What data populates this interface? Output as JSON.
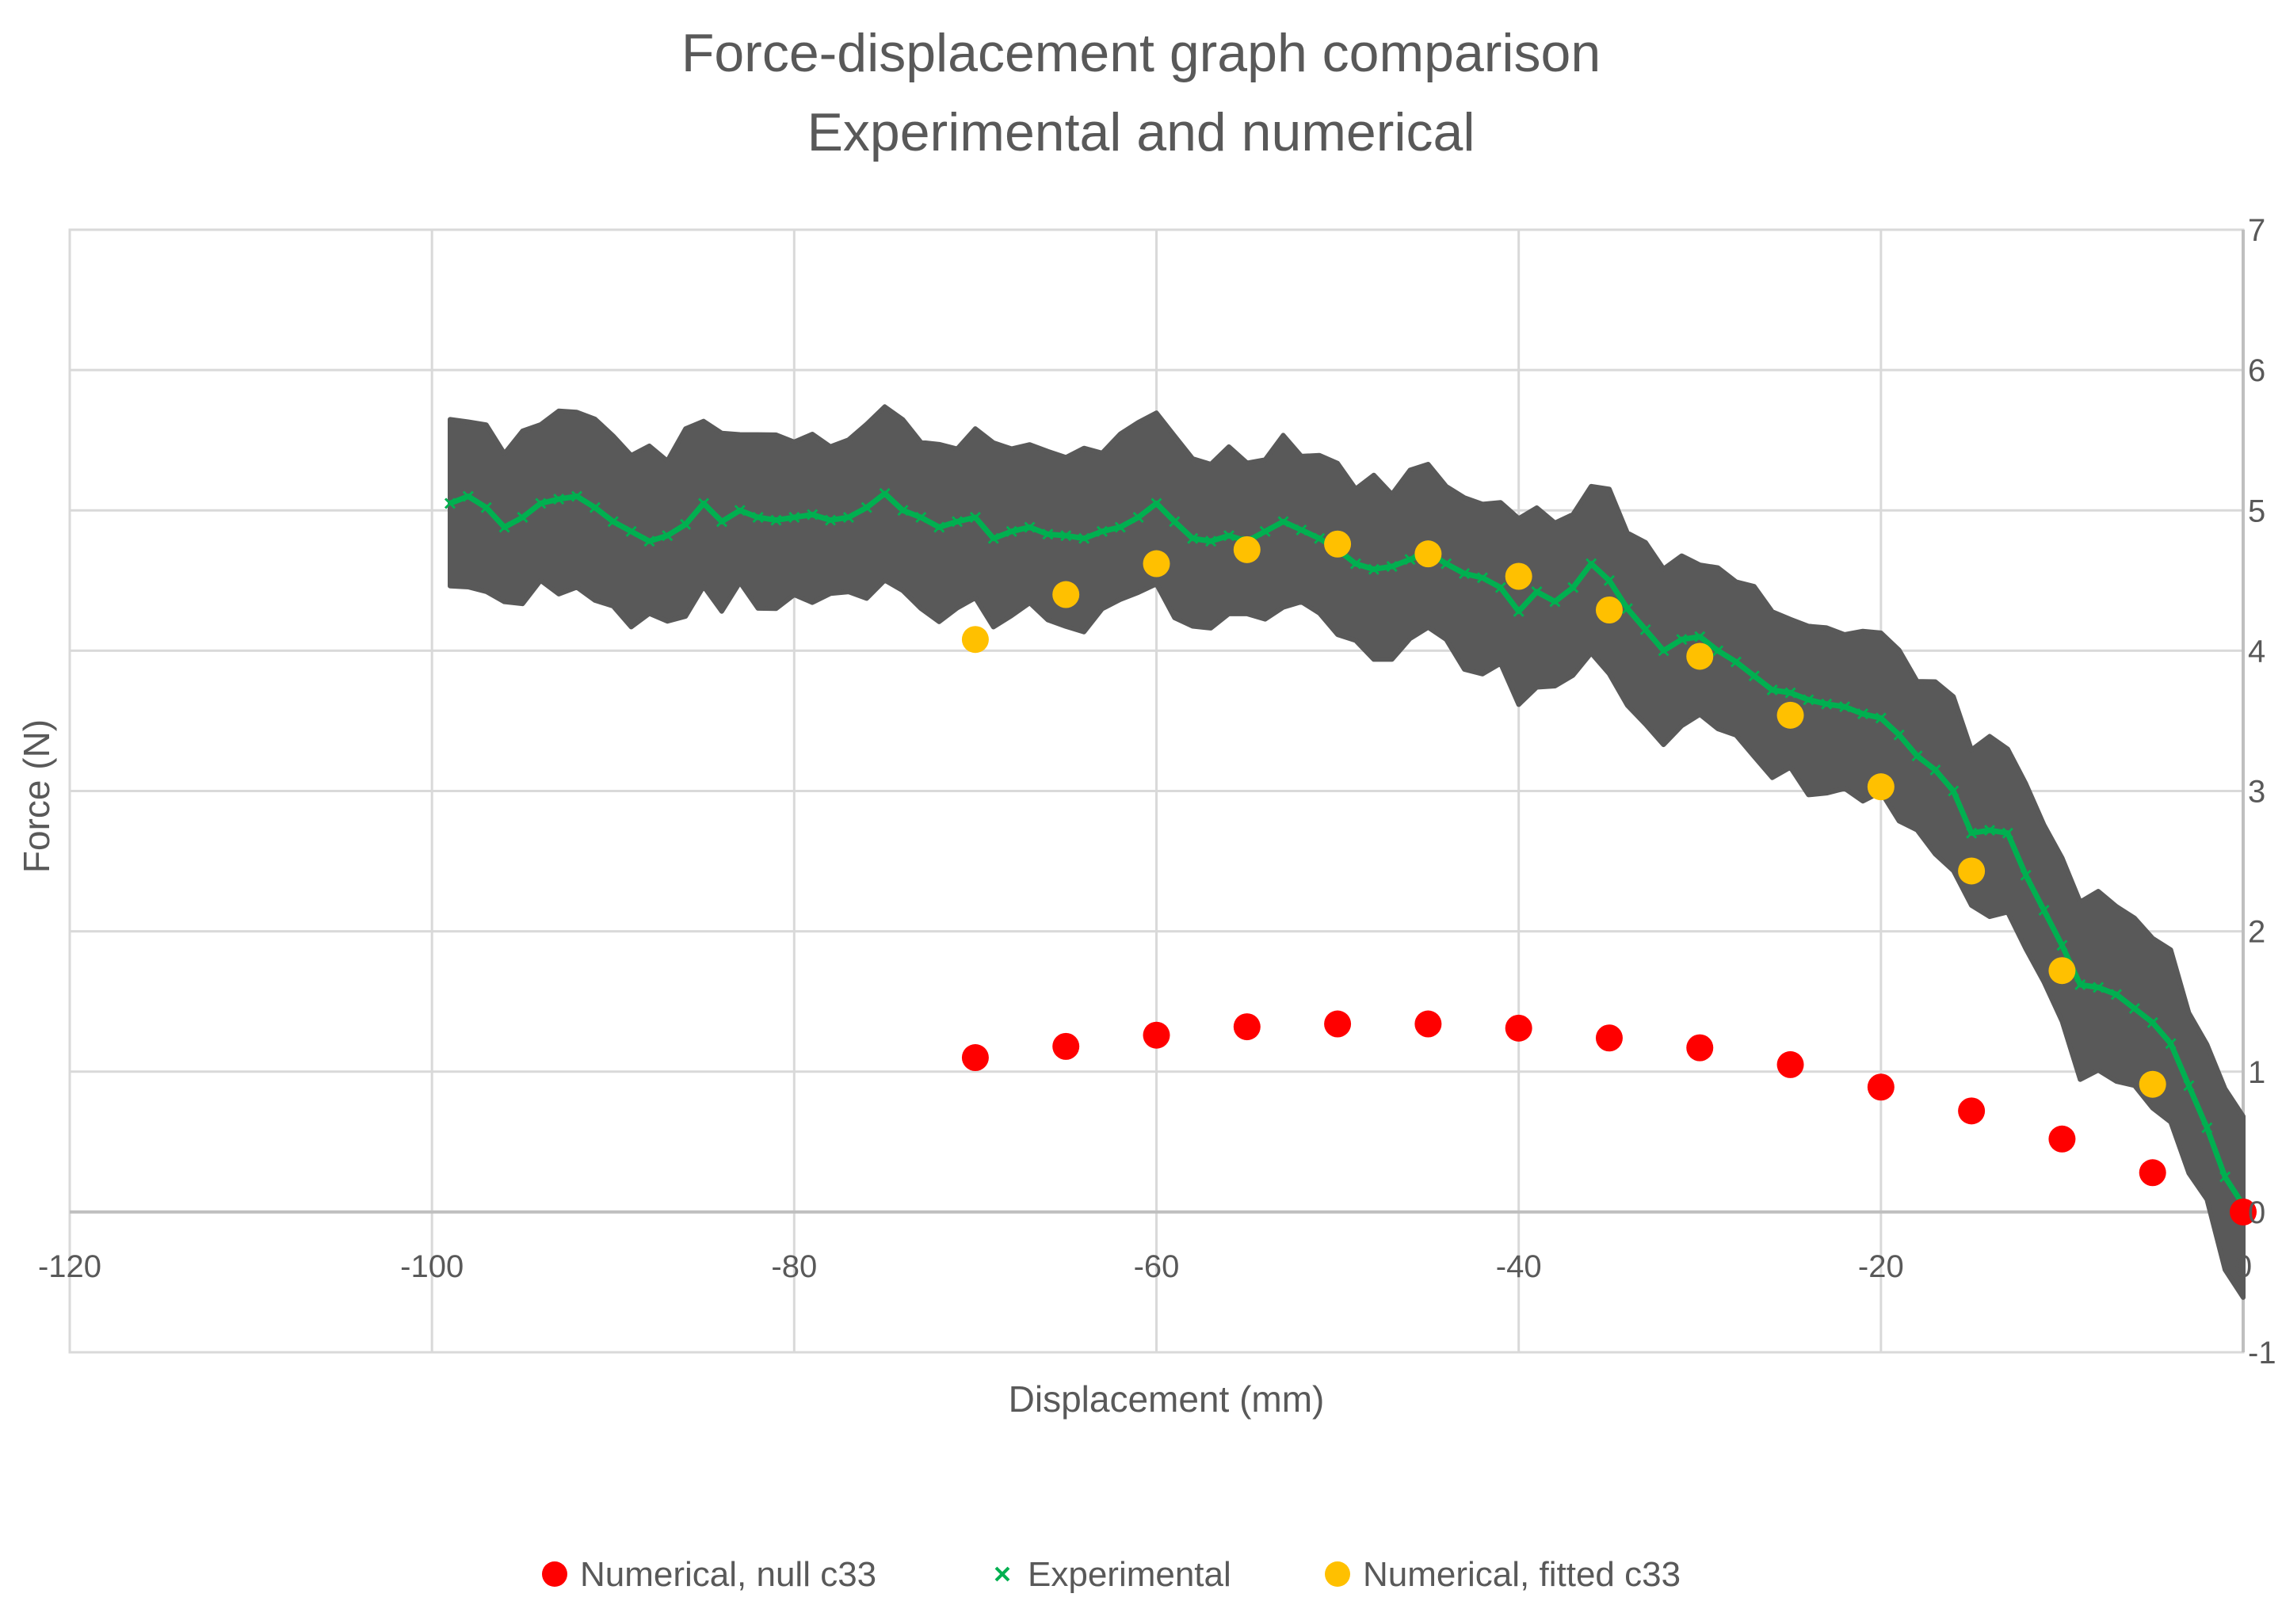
{
  "chart_data": {
    "type": "scatter",
    "title": "Force-displacement graph comparison",
    "subtitle": "Experimental and numerical",
    "xlabel": "Displacement (mm)",
    "ylabel": "Force (N)",
    "xlim": [
      -120,
      0
    ],
    "ylim": [
      -1,
      7
    ],
    "xticks": [
      -120,
      -100,
      -80,
      -60,
      -40,
      -20,
      0
    ],
    "xtick_labels": [
      "-120",
      "-100",
      "-80",
      "-60",
      "-40",
      "-20",
      "0"
    ],
    "yticks": [
      -1,
      0,
      1,
      2,
      3,
      4,
      5,
      6,
      7
    ],
    "ytick_labels": [
      "-1",
      "0",
      "1",
      "2",
      "3",
      "4",
      "5",
      "6",
      "7"
    ],
    "grid": true,
    "legend_position": "bottom",
    "series": [
      {
        "name": "Numerical, null c33",
        "marker": "circle",
        "color": "#ff0000",
        "x": [
          -70,
          -65,
          -60,
          -55,
          -50,
          -45,
          -40,
          -35,
          -30,
          -25,
          -20,
          -15,
          -10,
          -5,
          0
        ],
        "y": [
          1.1,
          1.18,
          1.26,
          1.32,
          1.34,
          1.34,
          1.31,
          1.24,
          1.17,
          1.05,
          0.89,
          0.72,
          0.52,
          0.28,
          0.0
        ]
      },
      {
        "name": "Experimental",
        "marker": "x",
        "color": "#00b050",
        "band_color": "#595959",
        "band_halfwidth": 0.6,
        "x": [
          -99,
          -98,
          -97,
          -96,
          -95,
          -94,
          -93,
          -92,
          -91,
          -90,
          -89,
          -88,
          -87,
          -86,
          -85,
          -84,
          -83,
          -82,
          -81,
          -80,
          -79,
          -78,
          -77,
          -76,
          -75,
          -74,
          -73,
          -72,
          -71,
          -70,
          -69,
          -68,
          -67,
          -66,
          -65,
          -64,
          -63,
          -62,
          -61,
          -60,
          -59,
          -58,
          -57,
          -56,
          -55,
          -54,
          -53,
          -52,
          -51,
          -50,
          -49,
          -48,
          -47,
          -46,
          -45,
          -44,
          -43,
          -42,
          -41,
          -40,
          -39,
          -38,
          -37,
          -36,
          -35,
          -34,
          -33,
          -32,
          -31,
          -30,
          -29,
          -28,
          -27,
          -26,
          -25,
          -24,
          -23,
          -22,
          -21,
          -20,
          -19,
          -18,
          -17,
          -16,
          -15,
          -14,
          -13,
          -12,
          -11,
          -10,
          -9,
          -8,
          -7,
          -6,
          -5,
          -4,
          -3,
          -2,
          -1,
          0
        ],
        "y": [
          5.05,
          5.1,
          5.02,
          4.88,
          4.95,
          5.05,
          5.08,
          5.1,
          5.02,
          4.92,
          4.85,
          4.78,
          4.82,
          4.9,
          5.05,
          4.92,
          5.0,
          4.95,
          4.93,
          4.95,
          4.97,
          4.93,
          4.95,
          5.02,
          5.12,
          5.0,
          4.95,
          4.88,
          4.92,
          4.95,
          4.8,
          4.85,
          4.88,
          4.83,
          4.82,
          4.8,
          4.85,
          4.88,
          4.95,
          5.05,
          4.92,
          4.8,
          4.78,
          4.82,
          4.78,
          4.85,
          4.92,
          4.86,
          4.8,
          4.72,
          4.62,
          4.58,
          4.6,
          4.65,
          4.7,
          4.62,
          4.55,
          4.52,
          4.45,
          4.28,
          4.42,
          4.35,
          4.45,
          4.62,
          4.5,
          4.3,
          4.15,
          4.0,
          4.08,
          4.1,
          4.0,
          3.92,
          3.82,
          3.72,
          3.7,
          3.65,
          3.62,
          3.6,
          3.55,
          3.52,
          3.4,
          3.25,
          3.15,
          3.0,
          2.7,
          2.72,
          2.7,
          2.4,
          2.15,
          1.9,
          1.62,
          1.6,
          1.55,
          1.45,
          1.35,
          1.2,
          0.9,
          0.6,
          0.25,
          0.05
        ]
      },
      {
        "name": "Numerical, fitted c33",
        "marker": "circle",
        "color": "#ffc000",
        "x": [
          -70,
          -65,
          -60,
          -55,
          -50,
          -45,
          -40,
          -35,
          -30,
          -25,
          -20,
          -15,
          -10,
          -5
        ],
        "y": [
          4.08,
          4.4,
          4.62,
          4.72,
          4.76,
          4.69,
          4.53,
          4.29,
          3.96,
          3.54,
          3.03,
          2.43,
          1.72,
          0.91
        ]
      }
    ]
  }
}
